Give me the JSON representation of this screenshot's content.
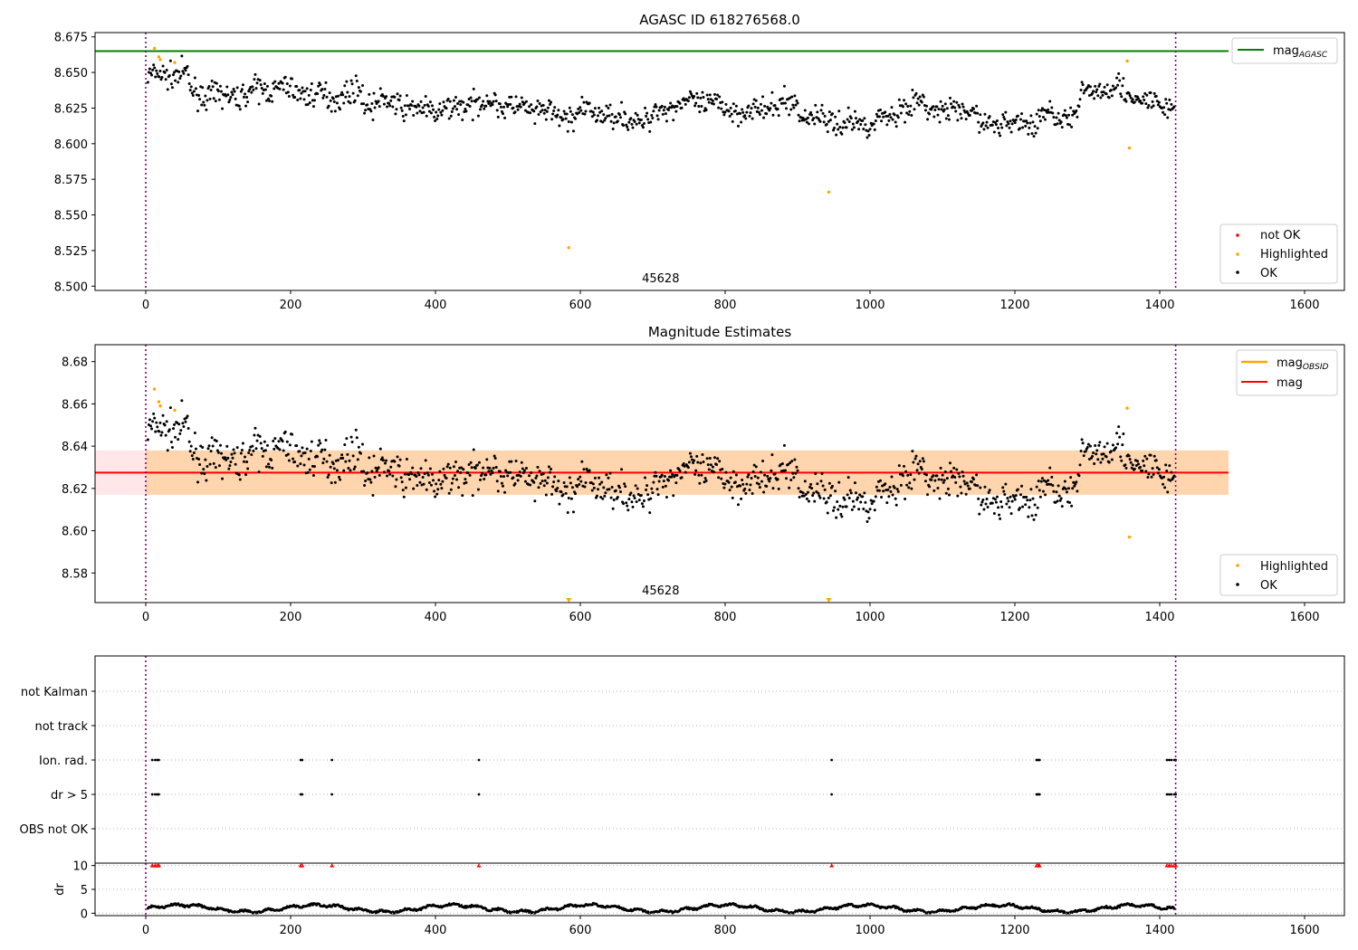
{
  "chart_data": [
    {
      "type": "scatter",
      "title": "AGASC ID 618276568.0",
      "xlim": [
        -70,
        1655
      ],
      "ylim": [
        8.497,
        8.678
      ],
      "xticks": [
        0,
        200,
        400,
        600,
        800,
        1000,
        1200,
        1400,
        1600
      ],
      "yticks": [
        8.5,
        8.525,
        8.55,
        8.575,
        8.6,
        8.625,
        8.65,
        8.675
      ],
      "ytick_format": 3,
      "grid": false,
      "vlines": [
        0,
        1422
      ],
      "annotation": {
        "text": "45628",
        "x": 711
      },
      "reference_line": {
        "name": "mag",
        "subscript": "AGASC",
        "y": 8.665,
        "x0": -70,
        "x1": 1495,
        "color": "#008000"
      },
      "series_note": "OK points follow a noisy light curve between x=0 and x=1422",
      "legend_line_position": "upper right",
      "legend_points_position": "lower right",
      "series": [
        {
          "name": "not OK",
          "color": "#ff0000",
          "points": []
        },
        {
          "name": "Highlighted",
          "color": "#ffa500",
          "points": [
            [
              12,
              8.667
            ],
            [
              18,
              8.661
            ],
            [
              20,
              8.659
            ],
            [
              40,
              8.657
            ],
            [
              584,
              8.527
            ],
            [
              943,
              8.566
            ],
            [
              1355,
              8.658
            ],
            [
              1358,
              8.597
            ]
          ]
        },
        {
          "name": "OK",
          "color": "#000000",
          "points": []
        }
      ]
    },
    {
      "type": "scatter",
      "title": "Magnitude Estimates",
      "xlim": [
        -70,
        1655
      ],
      "ylim": [
        8.566,
        8.688
      ],
      "xticks": [
        0,
        200,
        400,
        600,
        800,
        1000,
        1200,
        1400,
        1600
      ],
      "yticks": [
        8.58,
        8.6,
        8.62,
        8.64,
        8.66,
        8.68
      ],
      "ytick_format": 2,
      "grid": false,
      "vlines": [
        0,
        1422
      ],
      "annotation": {
        "text": "45628",
        "x": 711
      },
      "mag_line": {
        "name": "mag",
        "y": 8.6275,
        "x0": -70,
        "x1": 1495,
        "color": "#ff0000"
      },
      "mag_band": {
        "y0": 8.617,
        "y1": 8.638,
        "x0": -70,
        "x1": 1495,
        "color": "#ffb6c1"
      },
      "obsid_band": {
        "name": "mag",
        "subscript": "OBSID",
        "y0": 8.617,
        "y1": 8.638,
        "x0": 0,
        "x1": 1495,
        "color": "#ffa500"
      },
      "legend_line_position": "upper right",
      "legend_points_position": "lower right",
      "series": [
        {
          "name": "Highlighted",
          "color": "#ffa500",
          "points": [
            [
              12,
              8.667
            ],
            [
              18,
              8.661
            ],
            [
              20,
              8.659
            ],
            [
              40,
              8.657
            ],
            [
              1355,
              8.658
            ],
            [
              1358,
              8.597
            ]
          ],
          "offscale": [
            584,
            943
          ]
        },
        {
          "name": "OK",
          "color": "#000000",
          "points": []
        }
      ]
    },
    {
      "type": "scatter",
      "title": "",
      "xlim": [
        -70,
        1655
      ],
      "xticks": [
        0,
        200,
        400,
        600,
        800,
        1000,
        1200,
        1400,
        1600
      ],
      "categories": [
        "OBS not OK",
        "dr > 5",
        "Ion. rad.",
        "not track",
        "not Kalman"
      ],
      "grid": true,
      "vlines": [
        0,
        1422
      ],
      "flags": {
        "dr > 5": [
          9,
          13,
          16,
          18,
          214,
          216,
          257,
          460,
          947,
          1230,
          1232,
          1234,
          1410,
          1413,
          1416,
          1420,
          1422
        ],
        "Ion. rad.": [
          9,
          13,
          16,
          18,
          214,
          216,
          257,
          460,
          947,
          1230,
          1232,
          1234,
          1410,
          1413,
          1416,
          1420,
          1422
        ]
      }
    },
    {
      "type": "scatter",
      "title": "",
      "ylabel": "dr",
      "xlim": [
        -70,
        1655
      ],
      "ylim": [
        -0.5,
        10.5
      ],
      "yticks": [
        0,
        5,
        10
      ],
      "xticks": [
        0,
        200,
        400,
        600,
        800,
        1000,
        1200,
        1400,
        1600
      ],
      "vlines": [
        0,
        1422
      ],
      "clipped_markers": {
        "color": "#ff0000",
        "y": 10,
        "x": [
          9,
          13,
          16,
          18,
          214,
          216,
          257,
          460,
          947,
          1230,
          1232,
          1234,
          1410,
          1413,
          1416,
          1420,
          1422
        ]
      },
      "series": [
        {
          "name": "dr",
          "color": "#000000",
          "points": []
        }
      ]
    }
  ]
}
